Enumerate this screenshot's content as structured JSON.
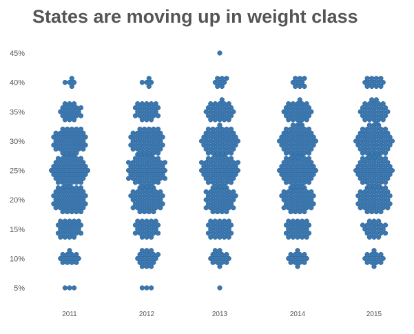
{
  "chart_data": {
    "type": "scatter",
    "subtype": "beeswarm",
    "title": "States are moving up in weight class",
    "xlabel": "",
    "ylabel": "",
    "x_categories": [
      "2011",
      "2012",
      "2013",
      "2014",
      "2015"
    ],
    "y_ticks": [
      "5%",
      "10%",
      "15%",
      "20%",
      "25%",
      "30%",
      "35%",
      "40%",
      "45%"
    ],
    "y_tick_values": [
      5,
      10,
      15,
      20,
      25,
      30,
      35,
      40,
      45
    ],
    "ylim": [
      3,
      46
    ],
    "grid": false,
    "point_color": "#3a77b0",
    "series": [
      {
        "year": "2011",
        "bin_counts": {
          "5": 3,
          "10": 14,
          "15": 26,
          "20": 48,
          "25": 56,
          "30": 46,
          "35": 21,
          "40": 5,
          "45": 0
        }
      },
      {
        "year": "2012",
        "bin_counts": {
          "5": 3,
          "10": 20,
          "15": 25,
          "20": 44,
          "25": 62,
          "30": 47,
          "35": 25,
          "40": 5,
          "45": 0
        }
      },
      {
        "year": "2013",
        "bin_counts": {
          "5": 1,
          "10": 16,
          "15": 27,
          "20": 42,
          "25": 59,
          "30": 52,
          "35": 30,
          "40": 8,
          "45": 1
        }
      },
      {
        "year": "2014",
        "bin_counts": {
          "5": 0,
          "10": 15,
          "15": 27,
          "20": 44,
          "25": 57,
          "30": 56,
          "35": 31,
          "40": 9,
          "45": 0
        }
      },
      {
        "year": "2015",
        "bin_counts": {
          "5": 0,
          "10": 15,
          "15": 22,
          "20": 46,
          "25": 57,
          "30": 56,
          "35": 32,
          "40": 13,
          "45": 0
        }
      }
    ]
  }
}
